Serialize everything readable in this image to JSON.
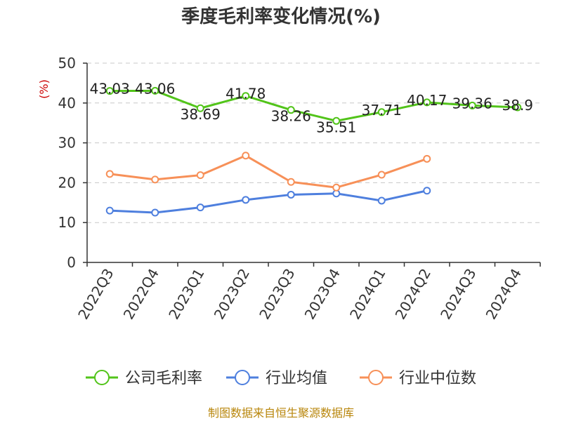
{
  "chart_data": {
    "type": "line",
    "title": "季度毛利率变化情况(%)",
    "ylabel": "(%)",
    "ylim": [
      0,
      50
    ],
    "yticks": [
      0,
      10,
      20,
      30,
      40,
      50
    ],
    "grid": true,
    "legend_position": "bottom",
    "categories": [
      "2022Q3",
      "2022Q4",
      "2023Q1",
      "2023Q2",
      "2023Q3",
      "2023Q4",
      "2024Q1",
      "2024Q2",
      "2024Q3",
      "2024Q4"
    ],
    "series": [
      {
        "name": "公司毛利率",
        "color": "#52c41a",
        "values": [
          43.03,
          43.06,
          38.69,
          41.78,
          38.26,
          35.51,
          37.71,
          40.17,
          39.36,
          38.9
        ],
        "labels": [
          "43.03",
          "43.06",
          "38.69",
          "41.78",
          "38.26",
          "35.51",
          "37.71",
          "40.17",
          "39.36",
          "38.9"
        ]
      },
      {
        "name": "行业均值",
        "color": "#4e7fde",
        "values": [
          13.0,
          12.5,
          13.8,
          15.7,
          17.0,
          17.3,
          15.5,
          18.0,
          null,
          null
        ]
      },
      {
        "name": "行业中位数",
        "color": "#f79058",
        "values": [
          22.2,
          20.8,
          21.9,
          26.8,
          20.2,
          18.8,
          22.0,
          26.0,
          null,
          null
        ]
      }
    ]
  },
  "source": "制图数据来自恒生聚源数据库"
}
